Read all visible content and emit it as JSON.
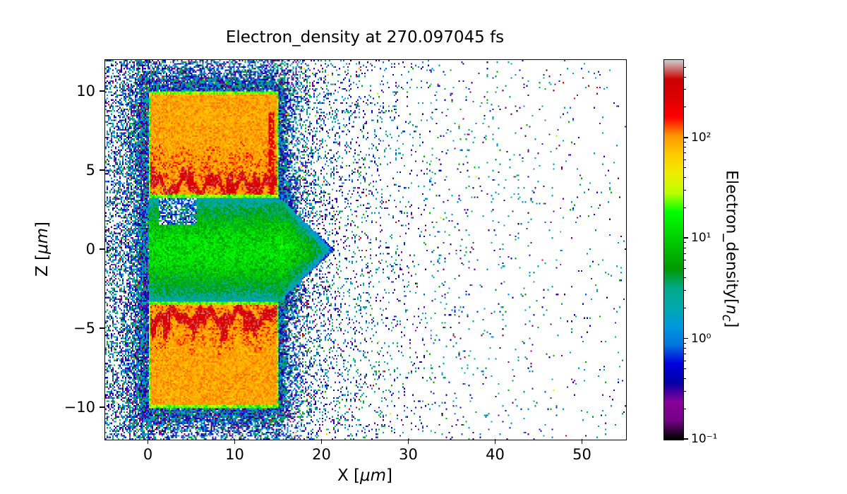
{
  "title": "Electron_density at 270.097045 fs",
  "axes": {
    "xlabel": {
      "pre": "X [",
      "unit": "μm",
      "post": "]"
    },
    "ylabel": {
      "pre": "Z [",
      "unit": "μm",
      "post": "]"
    },
    "x_ticks": [
      "0",
      "10",
      "20",
      "30",
      "40",
      "50"
    ],
    "x_tick_values": [
      0,
      10,
      20,
      30,
      40,
      50
    ],
    "y_ticks": [
      "−10",
      "−5",
      "0",
      "5",
      "10"
    ],
    "y_tick_values": [
      -10,
      -5,
      0,
      5,
      10
    ]
  },
  "colorbar": {
    "label": {
      "pre": "Electron_density[",
      "unit": "n",
      "sub": "c",
      "post": "]"
    },
    "scale": "log",
    "vmin": 0.1,
    "vmax": 600,
    "ticks": [
      {
        "value": 100,
        "label": "10²"
      },
      {
        "value": 10,
        "label": "10¹"
      },
      {
        "value": 1,
        "label": "10⁰"
      },
      {
        "value": 0.1,
        "label": "10⁻¹"
      }
    ]
  },
  "chart_data": {
    "type": "heatmap",
    "title": "Electron_density at 270.097045 fs",
    "xlabel": "X [μm]",
    "ylabel": "Z [μm]",
    "xlim": [
      -5,
      55
    ],
    "ylim": [
      -12,
      12
    ],
    "colorbar_label": "Electron_density[n_c]",
    "color_scale": "log",
    "vmin": 0.1,
    "vmax": 600,
    "colormap": "nipy_spectral",
    "colorbar_tick_values": [
      0.1,
      1,
      10,
      100
    ],
    "features": [
      {
        "region": "upper-target-slab",
        "x_range": [
          0,
          15
        ],
        "z_range": [
          3.3,
          10
        ],
        "density_nc": 90
      },
      {
        "region": "lower-target-slab",
        "x_range": [
          0,
          15
        ],
        "z_range": [
          -10,
          -3.3
        ],
        "density_nc": 90
      },
      {
        "region": "upper-slab-heated-filament",
        "x_range": [
          0,
          14.5
        ],
        "z_range": [
          3.6,
          4.6
        ],
        "density_nc": 280
      },
      {
        "region": "lower-slab-heated-filament",
        "x_range": [
          0,
          14.5
        ],
        "z_range": [
          -4.9,
          -3.8
        ],
        "density_nc": 280
      },
      {
        "region": "channel-plasma-plume",
        "x_range": [
          0,
          21.5
        ],
        "z_range": [
          -3.3,
          3.3
        ],
        "density_nc": 11
      },
      {
        "region": "coronal-halo-scatter",
        "x_range": [
          -5,
          30
        ],
        "z_range": [
          -12,
          12
        ],
        "density_nc": 0.8
      },
      {
        "region": "far-field-sparse-particles",
        "x_range": [
          30,
          55
        ],
        "z_range": [
          -12,
          12
        ],
        "density_nc": 0.5
      }
    ],
    "colormap_stops": [
      [
        0.0,
        0,
        0,
        0
      ],
      [
        0.05,
        119,
        0,
        136
      ],
      [
        0.1,
        136,
        0,
        153
      ],
      [
        0.15,
        0,
        0,
        166
      ],
      [
        0.2,
        0,
        0,
        221
      ],
      [
        0.25,
        0,
        119,
        221
      ],
      [
        0.3,
        0,
        153,
        221
      ],
      [
        0.35,
        0,
        170,
        170
      ],
      [
        0.4,
        0,
        170,
        136
      ],
      [
        0.45,
        0,
        153,
        0
      ],
      [
        0.5,
        0,
        187,
        0
      ],
      [
        0.55,
        0,
        221,
        0
      ],
      [
        0.6,
        0,
        255,
        0
      ],
      [
        0.65,
        187,
        255,
        0
      ],
      [
        0.7,
        238,
        238,
        0
      ],
      [
        0.75,
        255,
        204,
        0
      ],
      [
        0.8,
        255,
        153,
        0
      ],
      [
        0.85,
        255,
        0,
        0
      ],
      [
        0.9,
        221,
        0,
        0
      ],
      [
        0.95,
        204,
        0,
        0
      ],
      [
        1.0,
        204,
        204,
        204
      ]
    ]
  }
}
